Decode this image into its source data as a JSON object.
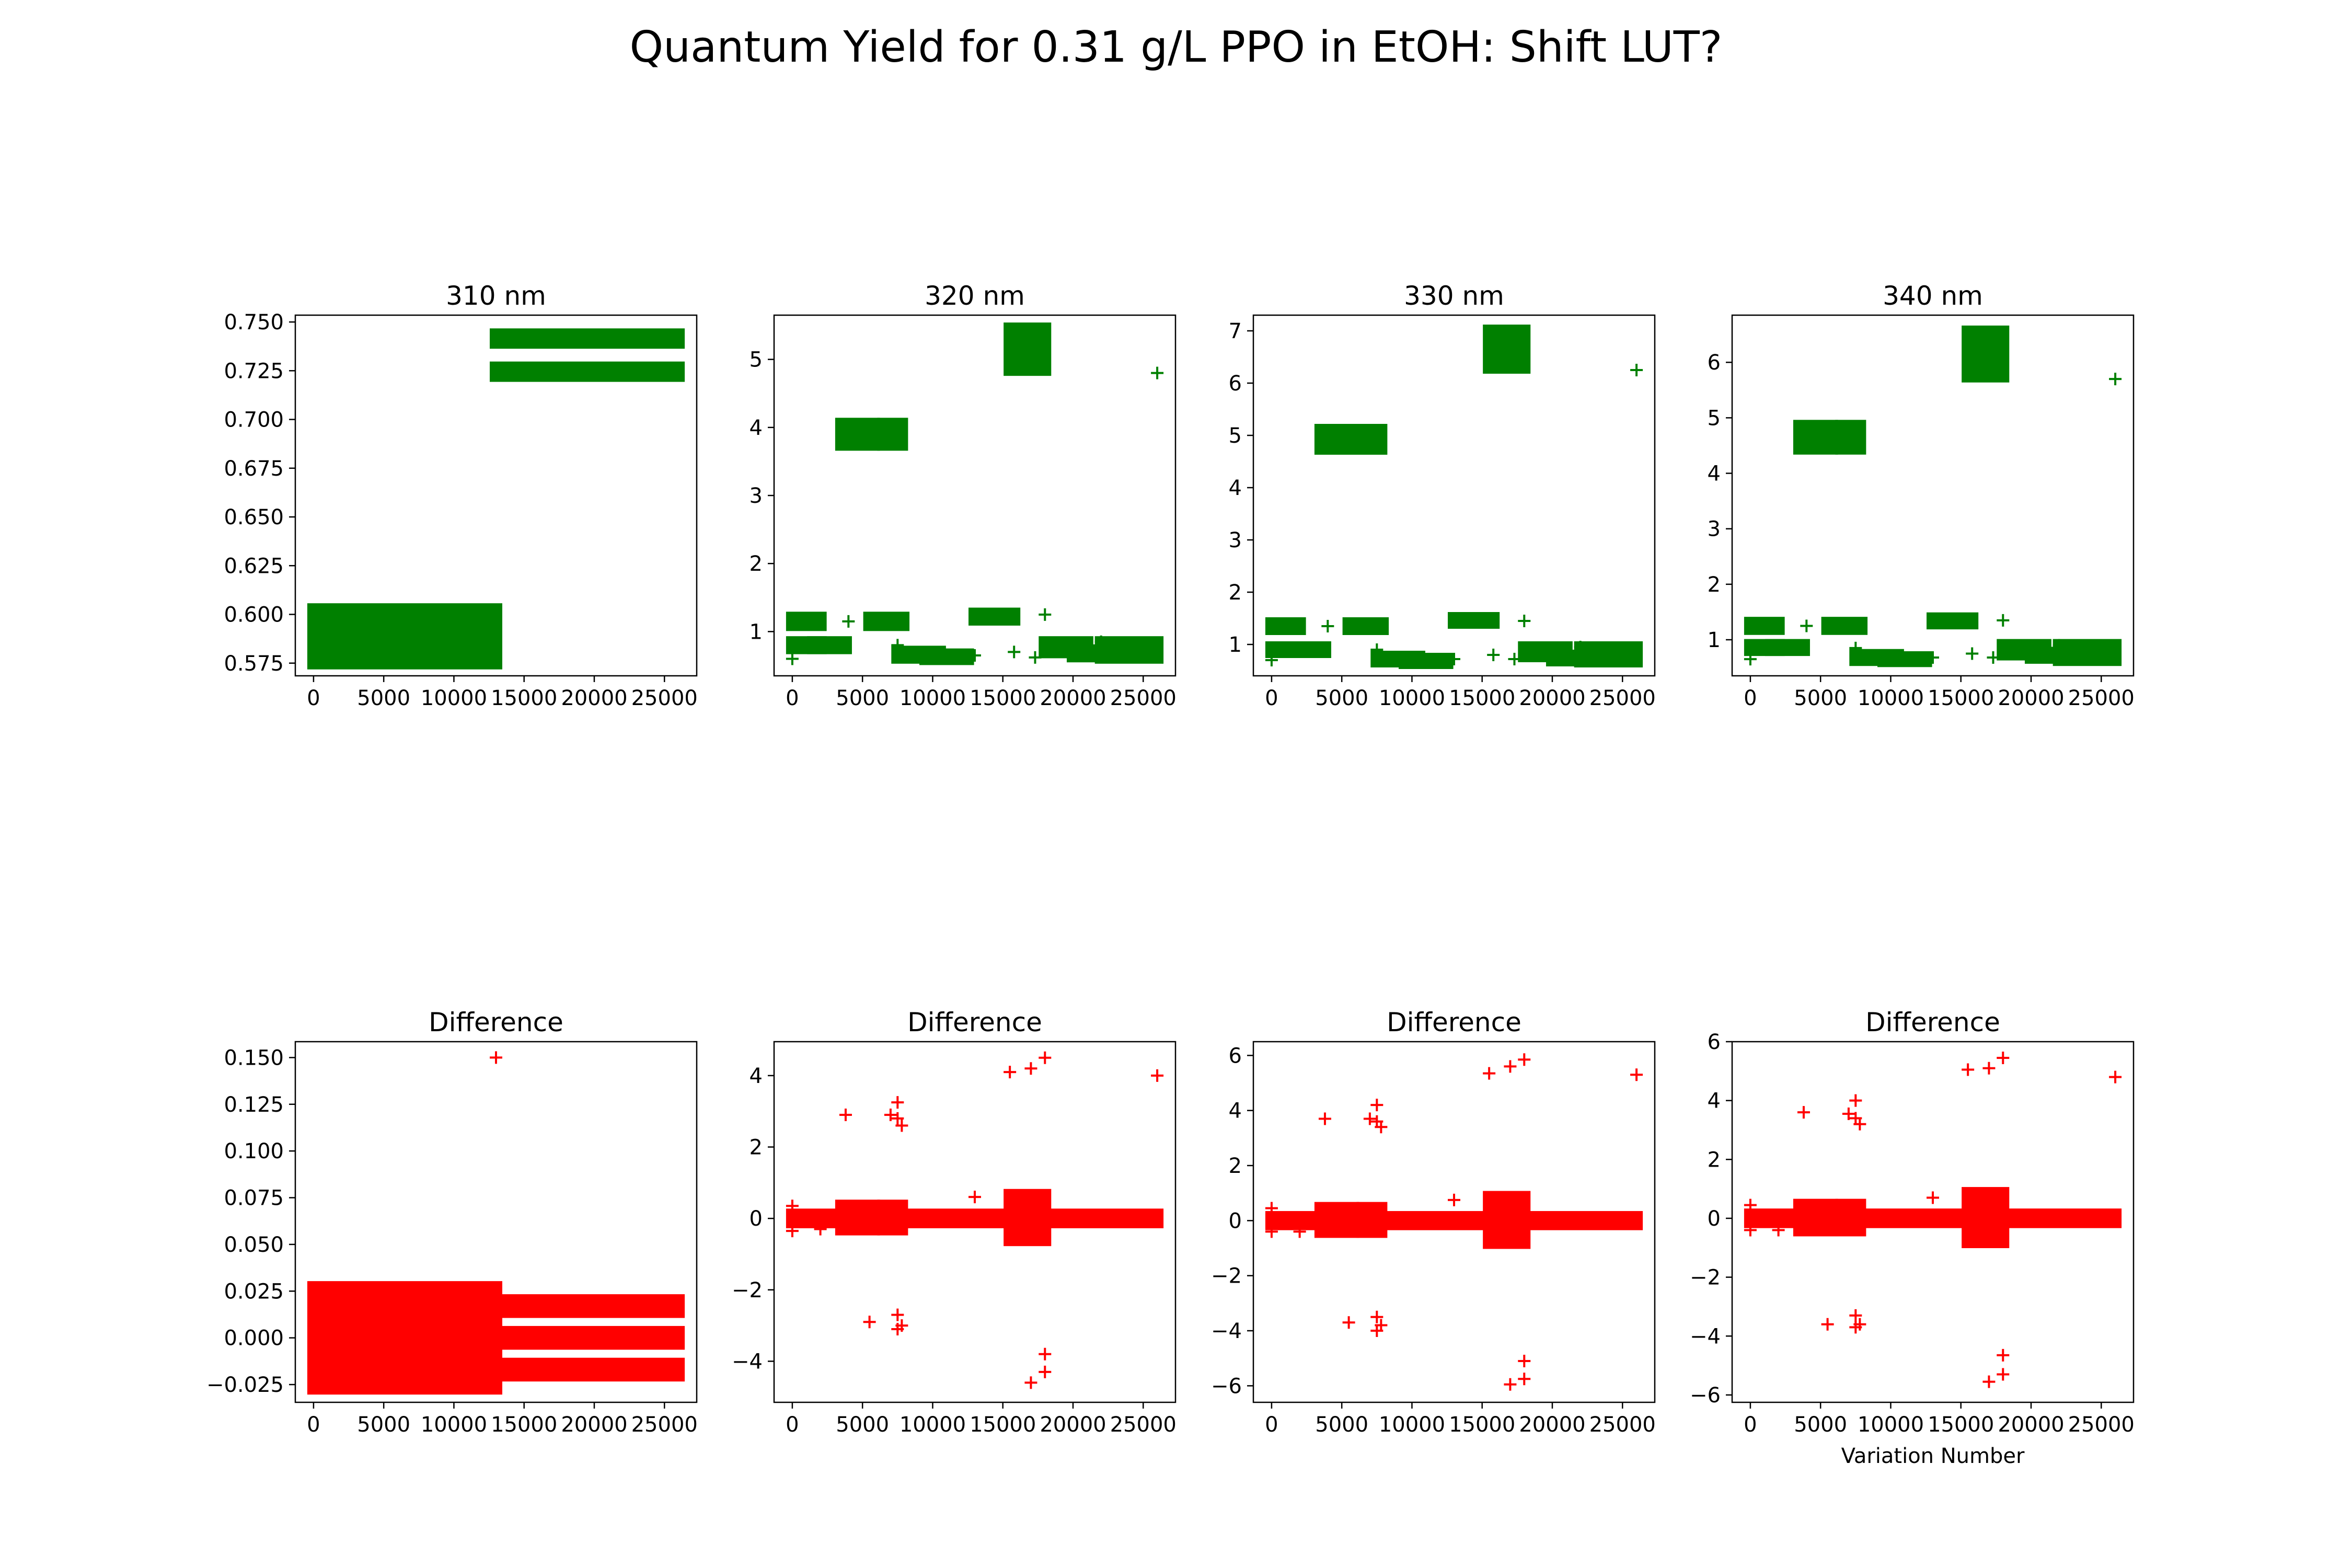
{
  "figure": {
    "title": "Quantum Yield for 0.31 g/L PPO in EtOH: Shift LUT?"
  },
  "chart_data": [
    {
      "type": "scatter",
      "title": "310 nm",
      "color": "#008000",
      "marker": "+",
      "xlim": [
        -1300,
        27300
      ],
      "ylim": [
        0.5685,
        0.7535
      ],
      "xticks": [
        0,
        5000,
        10000,
        15000,
        20000,
        25000
      ],
      "xtick_labels": [
        "0",
        "5000",
        "10000",
        "15000",
        "20000",
        "25000"
      ],
      "yticks": [
        0.575,
        0.6,
        0.625,
        0.65,
        0.675,
        0.7,
        0.725,
        0.75
      ],
      "ytick_labels": [
        "0.575",
        "0.600",
        "0.625",
        "0.650",
        "0.675",
        "0.700",
        "0.725",
        "0.750"
      ],
      "xlabel": "",
      "bands": [
        {
          "x": [
            0,
            13000
          ],
          "y": [
            0.575,
            0.6025
          ]
        },
        {
          "x": [
            13000,
            26000
          ],
          "y": [
            0.7395,
            0.7435
          ]
        },
        {
          "x": [
            13000,
            26000
          ],
          "y": [
            0.7225,
            0.7265
          ]
        }
      ],
      "points": []
    },
    {
      "type": "scatter",
      "title": "320 nm",
      "color": "#008000",
      "marker": "+",
      "xlim": [
        -1300,
        27300
      ],
      "ylim": [
        0.35,
        5.65
      ],
      "xticks": [
        0,
        5000,
        10000,
        15000,
        20000,
        25000
      ],
      "xtick_labels": [
        "0",
        "5000",
        "10000",
        "15000",
        "20000",
        "25000"
      ],
      "yticks": [
        1,
        2,
        3,
        4,
        5
      ],
      "ytick_labels": [
        "1",
        "2",
        "3",
        "4",
        "5"
      ],
      "xlabel": "",
      "bands": [
        {
          "x": [
            3500,
            5800
          ],
          "y": [
            3.75,
            4.05
          ]
        },
        {
          "x": [
            6500,
            7800
          ],
          "y": [
            3.75,
            4.05
          ]
        },
        {
          "x": [
            15500,
            18000
          ],
          "y": [
            4.85,
            5.45
          ]
        },
        {
          "x": [
            0,
            2000
          ],
          "y": [
            1.1,
            1.2
          ]
        },
        {
          "x": [
            0,
            2000
          ],
          "y": [
            0.76,
            0.84
          ]
        },
        {
          "x": [
            1500,
            3800
          ],
          "y": [
            0.76,
            0.84
          ]
        },
        {
          "x": [
            5500,
            7900
          ],
          "y": [
            1.1,
            1.2
          ]
        },
        {
          "x": [
            7500,
            10500
          ],
          "y": [
            0.62,
            0.7
          ]
        },
        {
          "x": [
            9500,
            12500
          ],
          "y": [
            0.6,
            0.66
          ]
        },
        {
          "x": [
            13000,
            15800
          ],
          "y": [
            1.18,
            1.26
          ]
        },
        {
          "x": [
            18000,
            21000
          ],
          "y": [
            0.7,
            0.84
          ]
        },
        {
          "x": [
            20000,
            23500
          ],
          "y": [
            0.64,
            0.72
          ]
        },
        {
          "x": [
            22000,
            26000
          ],
          "y": [
            0.62,
            0.84
          ]
        }
      ],
      "points": [
        [
          0,
          0.6
        ],
        [
          4000,
          1.15
        ],
        [
          7500,
          0.8
        ],
        [
          13000,
          0.65
        ],
        [
          15800,
          0.7
        ],
        [
          17300,
          0.62
        ],
        [
          18000,
          1.25
        ],
        [
          22000,
          0.85
        ],
        [
          26000,
          4.8
        ]
      ]
    },
    {
      "type": "scatter",
      "title": "330 nm",
      "color": "#008000",
      "marker": "+",
      "xlim": [
        -1300,
        27300
      ],
      "ylim": [
        0.4,
        7.3
      ],
      "xticks": [
        0,
        5000,
        10000,
        15000,
        20000,
        25000
      ],
      "xtick_labels": [
        "0",
        "5000",
        "10000",
        "15000",
        "20000",
        "25000"
      ],
      "yticks": [
        1,
        2,
        3,
        4,
        5,
        6,
        7
      ],
      "ytick_labels": [
        "1",
        "2",
        "3",
        "4",
        "5",
        "6",
        "7"
      ],
      "xlabel": "",
      "bands": [
        {
          "x": [
            3500,
            5800
          ],
          "y": [
            4.75,
            5.1
          ]
        },
        {
          "x": [
            6500,
            7800
          ],
          "y": [
            4.75,
            5.1
          ]
        },
        {
          "x": [
            15500,
            18000
          ],
          "y": [
            6.3,
            7.0
          ]
        },
        {
          "x": [
            0,
            2000
          ],
          "y": [
            1.3,
            1.4
          ]
        },
        {
          "x": [
            0,
            2000
          ],
          "y": [
            0.86,
            0.94
          ]
        },
        {
          "x": [
            1500,
            3800
          ],
          "y": [
            0.86,
            0.94
          ]
        },
        {
          "x": [
            5500,
            7900
          ],
          "y": [
            1.3,
            1.4
          ]
        },
        {
          "x": [
            7500,
            10500
          ],
          "y": [
            0.68,
            0.76
          ]
        },
        {
          "x": [
            9500,
            12500
          ],
          "y": [
            0.65,
            0.72
          ]
        },
        {
          "x": [
            13000,
            15800
          ],
          "y": [
            1.42,
            1.5
          ]
        },
        {
          "x": [
            18000,
            21000
          ],
          "y": [
            0.78,
            0.94
          ]
        },
        {
          "x": [
            20000,
            23500
          ],
          "y": [
            0.7,
            0.78
          ]
        },
        {
          "x": [
            22000,
            26000
          ],
          "y": [
            0.68,
            0.94
          ]
        }
      ],
      "points": [
        [
          0,
          0.7
        ],
        [
          4000,
          1.35
        ],
        [
          7500,
          0.9
        ],
        [
          13000,
          0.72
        ],
        [
          15800,
          0.8
        ],
        [
          17300,
          0.72
        ],
        [
          18000,
          1.45
        ],
        [
          22000,
          0.95
        ],
        [
          26000,
          6.25
        ]
      ]
    },
    {
      "type": "scatter",
      "title": "340 nm",
      "color": "#008000",
      "marker": "+",
      "xlim": [
        -1300,
        27300
      ],
      "ylim": [
        0.35,
        6.85
      ],
      "xticks": [
        0,
        5000,
        10000,
        15000,
        20000,
        25000
      ],
      "xtick_labels": [
        "0",
        "5000",
        "10000",
        "15000",
        "20000",
        "25000"
      ],
      "yticks": [
        1,
        2,
        3,
        4,
        5,
        6
      ],
      "ytick_labels": [
        "1",
        "2",
        "3",
        "4",
        "5",
        "6"
      ],
      "xlabel": "",
      "bands": [
        {
          "x": [
            3500,
            5800
          ],
          "y": [
            4.45,
            4.85
          ]
        },
        {
          "x": [
            6500,
            7800
          ],
          "y": [
            4.45,
            4.85
          ]
        },
        {
          "x": [
            15500,
            18000
          ],
          "y": [
            5.75,
            6.55
          ]
        },
        {
          "x": [
            0,
            2000
          ],
          "y": [
            1.2,
            1.3
          ]
        },
        {
          "x": [
            0,
            2000
          ],
          "y": [
            0.82,
            0.9
          ]
        },
        {
          "x": [
            1500,
            3800
          ],
          "y": [
            0.82,
            0.9
          ]
        },
        {
          "x": [
            5500,
            7900
          ],
          "y": [
            1.2,
            1.3
          ]
        },
        {
          "x": [
            7500,
            10500
          ],
          "y": [
            0.64,
            0.72
          ]
        },
        {
          "x": [
            9500,
            12500
          ],
          "y": [
            0.62,
            0.68
          ]
        },
        {
          "x": [
            13000,
            15800
          ],
          "y": [
            1.3,
            1.38
          ]
        },
        {
          "x": [
            18000,
            21000
          ],
          "y": [
            0.74,
            0.9
          ]
        },
        {
          "x": [
            20000,
            23500
          ],
          "y": [
            0.68,
            0.76
          ]
        },
        {
          "x": [
            22000,
            26000
          ],
          "y": [
            0.64,
            0.9
          ]
        }
      ],
      "points": [
        [
          0,
          0.65
        ],
        [
          4000,
          1.25
        ],
        [
          7500,
          0.85
        ],
        [
          13000,
          0.68
        ],
        [
          15800,
          0.75
        ],
        [
          17300,
          0.68
        ],
        [
          18000,
          1.35
        ],
        [
          22000,
          0.9
        ],
        [
          26000,
          5.7
        ]
      ]
    },
    {
      "type": "scatter",
      "title": "Difference",
      "color": "#ff0000",
      "marker": "+",
      "xlim": [
        -1300,
        27300
      ],
      "ylim": [
        -0.0345,
        0.1585
      ],
      "xticks": [
        0,
        5000,
        10000,
        15000,
        20000,
        25000
      ],
      "xtick_labels": [
        "0",
        "5000",
        "10000",
        "15000",
        "20000",
        "25000"
      ],
      "yticks": [
        -0.025,
        0,
        0.025,
        0.05,
        0.075,
        0.1,
        0.125,
        0.15
      ],
      "ytick_labels": [
        "−0.025",
        "0.000",
        "0.025",
        "0.050",
        "0.075",
        "0.100",
        "0.125",
        "0.150"
      ],
      "xlabel": "",
      "bands": [
        {
          "x": [
            0,
            13000
          ],
          "y": [
            -0.027,
            0.027
          ]
        },
        {
          "x": [
            13000,
            26000
          ],
          "y": [
            0.014,
            0.02
          ]
        },
        {
          "x": [
            13000,
            26000
          ],
          "y": [
            -0.003,
            0.003
          ]
        },
        {
          "x": [
            13000,
            26000
          ],
          "y": [
            -0.02,
            -0.014
          ]
        }
      ],
      "points": [
        [
          13000,
          0.15
        ]
      ]
    },
    {
      "type": "scatter",
      "title": "Difference",
      "color": "#ff0000",
      "marker": "+",
      "xlim": [
        -1300,
        27300
      ],
      "ylim": [
        -5.15,
        4.95
      ],
      "xticks": [
        0,
        5000,
        10000,
        15000,
        20000,
        25000
      ],
      "xtick_labels": [
        "0",
        "5000",
        "10000",
        "15000",
        "20000",
        "25000"
      ],
      "yticks": [
        -4,
        -2,
        0,
        2,
        4
      ],
      "ytick_labels": [
        "−4",
        "−2",
        "0",
        "2",
        "4"
      ],
      "xlabel": "",
      "bands": [
        {
          "x": [
            0,
            26000
          ],
          "y": [
            -0.1,
            0.1
          ]
        },
        {
          "x": [
            3500,
            5800
          ],
          "y": [
            -0.3,
            0.35
          ]
        },
        {
          "x": [
            6500,
            7800
          ],
          "y": [
            -0.3,
            0.35
          ]
        },
        {
          "x": [
            15500,
            18000
          ],
          "y": [
            -0.6,
            0.65
          ]
        }
      ],
      "points": [
        [
          0,
          0.35
        ],
        [
          0,
          -0.35
        ],
        [
          2000,
          -0.3
        ],
        [
          3800,
          2.9
        ],
        [
          5500,
          -2.9
        ],
        [
          7000,
          2.9
        ],
        [
          7500,
          3.25
        ],
        [
          7500,
          2.8
        ],
        [
          7800,
          2.6
        ],
        [
          7500,
          -2.7
        ],
        [
          7800,
          -3.0
        ],
        [
          7500,
          -3.1
        ],
        [
          13000,
          0.6
        ],
        [
          15500,
          4.1
        ],
        [
          17000,
          4.2
        ],
        [
          18000,
          4.5
        ],
        [
          17000,
          -4.6
        ],
        [
          18000,
          -3.8
        ],
        [
          18000,
          -4.3
        ],
        [
          26000,
          4.0
        ]
      ]
    },
    {
      "type": "scatter",
      "title": "Difference",
      "color": "#ff0000",
      "marker": "+",
      "xlim": [
        -1300,
        27300
      ],
      "ylim": [
        -6.6,
        6.5
      ],
      "xticks": [
        0,
        5000,
        10000,
        15000,
        20000,
        25000
      ],
      "xtick_labels": [
        "0",
        "5000",
        "10000",
        "15000",
        "20000",
        "25000"
      ],
      "yticks": [
        -6,
        -4,
        -2,
        0,
        2,
        4,
        6
      ],
      "ytick_labels": [
        "−6",
        "−4",
        "−2",
        "0",
        "2",
        "4",
        "6"
      ],
      "xlabel": "",
      "bands": [
        {
          "x": [
            0,
            26000
          ],
          "y": [
            -0.12,
            0.12
          ]
        },
        {
          "x": [
            3500,
            5800
          ],
          "y": [
            -0.4,
            0.45
          ]
        },
        {
          "x": [
            6500,
            7800
          ],
          "y": [
            -0.4,
            0.45
          ]
        },
        {
          "x": [
            15500,
            18000
          ],
          "y": [
            -0.8,
            0.85
          ]
        }
      ],
      "points": [
        [
          0,
          0.45
        ],
        [
          0,
          -0.4
        ],
        [
          2000,
          -0.4
        ],
        [
          3800,
          3.7
        ],
        [
          5500,
          -3.7
        ],
        [
          7000,
          3.7
        ],
        [
          7500,
          4.2
        ],
        [
          7500,
          3.6
        ],
        [
          7800,
          3.4
        ],
        [
          7500,
          -3.5
        ],
        [
          7800,
          -3.8
        ],
        [
          7500,
          -4.0
        ],
        [
          13000,
          0.75
        ],
        [
          15500,
          5.35
        ],
        [
          17000,
          5.6
        ],
        [
          18000,
          5.85
        ],
        [
          17000,
          -5.95
        ],
        [
          18000,
          -5.1
        ],
        [
          18000,
          -5.75
        ],
        [
          26000,
          5.3
        ]
      ]
    },
    {
      "type": "scatter",
      "title": "Difference",
      "color": "#ff0000",
      "marker": "+",
      "xlim": [
        -1300,
        27300
      ],
      "ylim": [
        -6.25,
        6.0
      ],
      "xticks": [
        0,
        5000,
        10000,
        15000,
        20000,
        25000
      ],
      "xtick_labels": [
        "0",
        "5000",
        "10000",
        "15000",
        "20000",
        "25000"
      ],
      "yticks": [
        -6,
        -4,
        -2,
        0,
        2,
        4,
        6
      ],
      "ytick_labels": [
        "−6",
        "−4",
        "−2",
        "0",
        "2",
        "4",
        "6"
      ],
      "xlabel": "Variation Number",
      "bands": [
        {
          "x": [
            0,
            26000
          ],
          "y": [
            -0.12,
            0.12
          ]
        },
        {
          "x": [
            3500,
            5800
          ],
          "y": [
            -0.4,
            0.45
          ]
        },
        {
          "x": [
            6500,
            7800
          ],
          "y": [
            -0.4,
            0.45
          ]
        },
        {
          "x": [
            15500,
            18000
          ],
          "y": [
            -0.8,
            0.85
          ]
        }
      ],
      "points": [
        [
          0,
          0.45
        ],
        [
          0,
          -0.4
        ],
        [
          2000,
          -0.4
        ],
        [
          3800,
          3.6
        ],
        [
          5500,
          -3.6
        ],
        [
          7000,
          3.55
        ],
        [
          7500,
          4.0
        ],
        [
          7500,
          3.4
        ],
        [
          7800,
          3.2
        ],
        [
          7500,
          -3.3
        ],
        [
          7800,
          -3.6
        ],
        [
          7500,
          -3.7
        ],
        [
          13000,
          0.7
        ],
        [
          15500,
          5.05
        ],
        [
          17000,
          5.1
        ],
        [
          18000,
          5.45
        ],
        [
          17000,
          -5.55
        ],
        [
          18000,
          -4.65
        ],
        [
          18000,
          -5.3
        ],
        [
          26000,
          4.8
        ]
      ]
    }
  ]
}
